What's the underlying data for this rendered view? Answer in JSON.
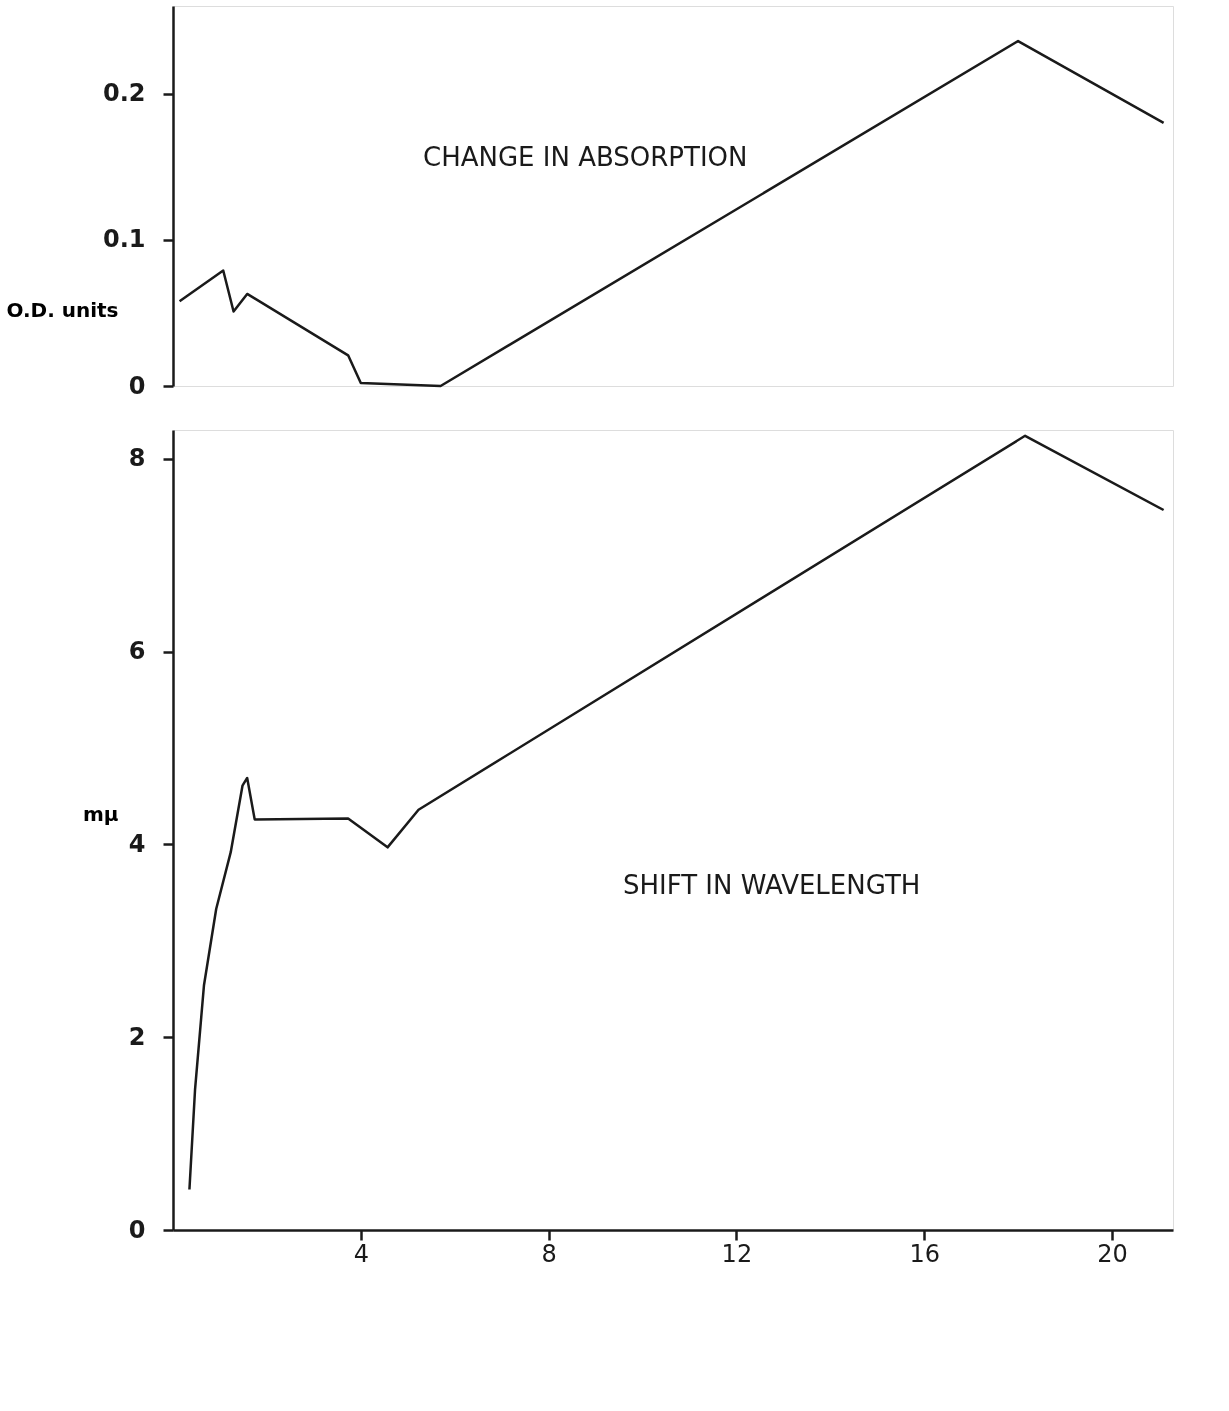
{
  "chart_data": [
    {
      "type": "line",
      "ylabel": "O.D. units",
      "annotations": [
        "CHANGE IN ABSORPTION"
      ],
      "tick_labels": "y",
      "grid": false,
      "xlim": [
        0,
        21.3
      ],
      "ylim": [
        0,
        0.26
      ],
      "yticks": [
        0,
        0.1,
        0.2
      ],
      "series": [
        {
          "color": "#1a1a1a",
          "x": [
            0.14,
            1.07,
            1.29,
            1.58,
            3.73,
            4.0,
            5.7,
            18.0,
            21.1
          ],
          "values": [
            0.058,
            0.079,
            0.051,
            0.063,
            0.021,
            0.002,
            0.0,
            0.236,
            0.18
          ]
        }
      ]
    },
    {
      "type": "line",
      "ylabel": "mμ",
      "annotations": [
        "SHIFT IN WAVELENGTH"
      ],
      "grid": false,
      "xlim": [
        0,
        21.3
      ],
      "xticks": [
        4,
        8,
        12,
        16,
        20
      ],
      "ylim": [
        0,
        8.3
      ],
      "yticks": [
        0,
        2,
        4,
        6,
        8
      ],
      "series": [
        {
          "color": "#1a1a1a",
          "x": [
            0.35,
            0.47,
            0.66,
            0.92,
            1.23,
            1.48,
            1.58,
            1.74,
            3.73,
            4.57,
            5.23,
            18.15,
            21.1
          ],
          "values": [
            0.42,
            1.46,
            2.54,
            3.33,
            3.92,
            4.61,
            4.69,
            4.26,
            4.27,
            3.97,
            4.36,
            8.24,
            7.47
          ]
        }
      ]
    }
  ]
}
